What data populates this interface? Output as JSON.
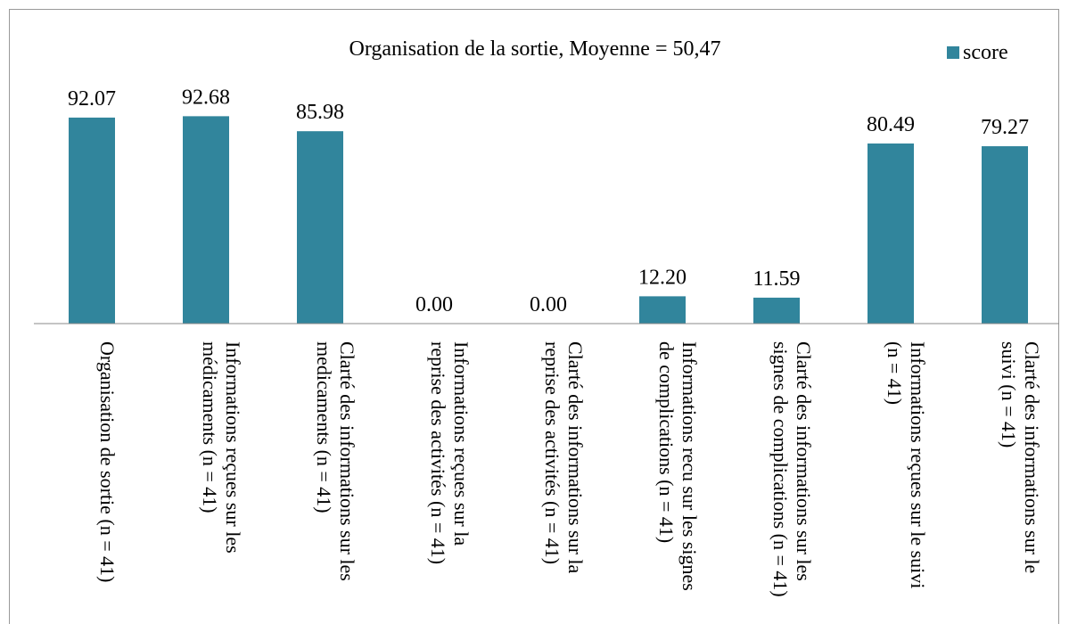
{
  "chart_data": {
    "type": "bar",
    "title": "Organisation de la sortie, Moyenne = 50,47",
    "categories": [
      "Organisation de sortie (n = 41)",
      "Informations reçues sur les médicaments (n = 41)",
      "Clarté des informations sur les medicaments (n = 41)",
      "Informations reçues sur la reprise des activités (n = 41)",
      "Clarté des informations sur la reprise des activités (n = 41)",
      "Informations recu sur les signes de complications (n = 41)",
      "Clarté des informations sur les signes de complications (n = 41)",
      "Informations reçues sur le suivi (n = 41)",
      "Clarté des informations sur le suivi (n = 41)"
    ],
    "series": [
      {
        "name": "score",
        "color": "#31859c",
        "values": [
          92.07,
          92.68,
          85.98,
          0,
          0,
          12.2,
          11.59,
          80.49,
          79.27
        ],
        "value_labels": [
          "92.07",
          "92.68",
          "85.98",
          "0.00",
          "0.00",
          "12.20",
          "11.59",
          "80.49",
          "79.27"
        ]
      }
    ],
    "ylim": [
      0,
      100
    ],
    "legend": "top-right"
  }
}
